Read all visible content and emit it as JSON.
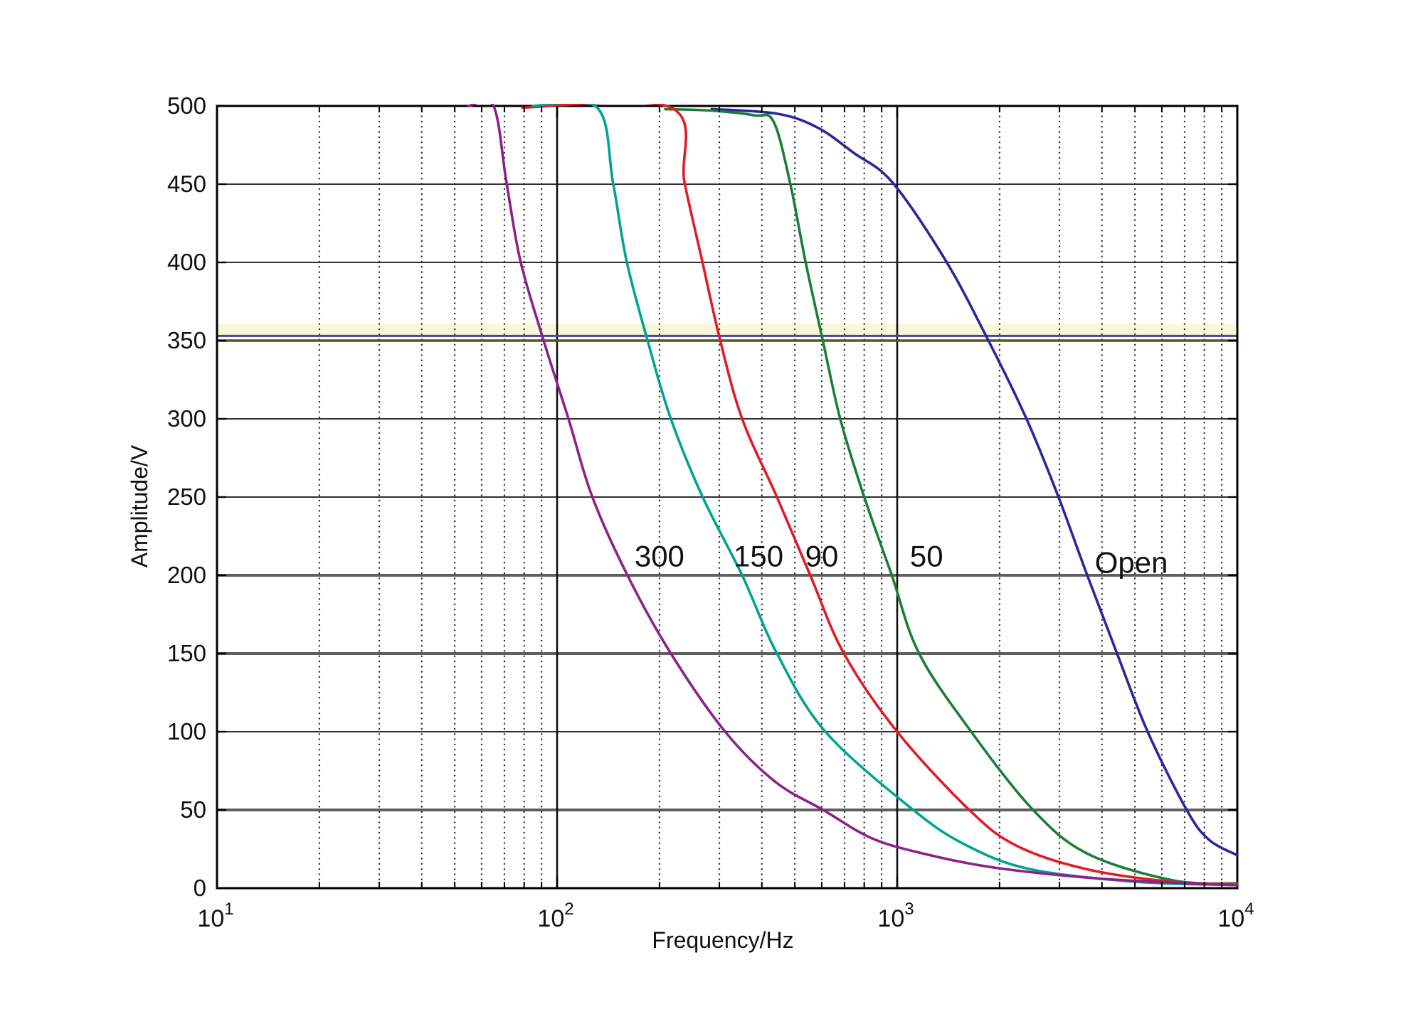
{
  "page": {
    "background": "#fefefe"
  },
  "chart_data": {
    "type": "line",
    "title": "",
    "xlabel": "Frequency/Hz",
    "ylabel": "Amplitude/V",
    "x_scale": "log",
    "xlim": [
      10,
      10000
    ],
    "ylim": [
      0,
      500
    ],
    "x_axis": {
      "tick_labels": [
        {
          "mantissa": "10",
          "exponent": "1",
          "value": 10
        },
        {
          "mantissa": "10",
          "exponent": "2",
          "value": 100
        },
        {
          "mantissa": "10",
          "exponent": "3",
          "value": 1000
        },
        {
          "mantissa": "10",
          "exponent": "4",
          "value": 10000
        }
      ],
      "major_gridlines": [
        100,
        1000
      ],
      "minor_gridlines": [
        20,
        30,
        40,
        50,
        60,
        70,
        80,
        90,
        200,
        300,
        400,
        500,
        600,
        700,
        800,
        900,
        2000,
        3000,
        4000,
        5000,
        6000,
        7000,
        8000,
        9000
      ]
    },
    "y_axis": {
      "tick_labels": [
        0,
        50,
        100,
        150,
        200,
        250,
        300,
        350,
        400,
        450,
        500
      ],
      "gridlines_thin": [
        100,
        250,
        300,
        400,
        450
      ],
      "gridlines_thick": [
        50,
        150,
        200
      ]
    },
    "grid": true,
    "legend_position": "inline-labels",
    "highlight_band": {
      "v_low": 353,
      "v_high": 360.5,
      "color": "#f8f8d9"
    },
    "ref_lines": [
      {
        "name": "blue-350-line",
        "v": 353,
        "color": "#4444aa",
        "width": 3
      },
      {
        "name": "olive-350-line",
        "v": 350,
        "color": "#4c5a20",
        "width": 3.5
      }
    ],
    "series": [
      {
        "name": "Open",
        "color": "#28289a",
        "label": {
          "text": "Open",
          "f": 4880,
          "v": 208
        },
        "points": [
          [
            285,
            498
          ],
          [
            445,
            495
          ],
          [
            585,
            486
          ],
          [
            745,
            470
          ],
          [
            969,
            451
          ],
          [
            1390,
            401
          ],
          [
            1845,
            351
          ],
          [
            2400,
            300
          ],
          [
            2980,
            250
          ],
          [
            3620,
            200
          ],
          [
            4430,
            150
          ],
          [
            5450,
            100
          ],
          [
            7100,
            50
          ],
          [
            8250,
            31
          ],
          [
            10000,
            21
          ]
        ]
      },
      {
        "name": "50",
        "color": "#1b7e35",
        "label": {
          "text": "50",
          "f": 1220,
          "v": 212
        },
        "points": [
          [
            208,
            498
          ],
          [
            285,
            497
          ],
          [
            380,
            494
          ],
          [
            433,
            490
          ],
          [
            484,
            451
          ],
          [
            537,
            401
          ],
          [
            603,
            351
          ],
          [
            680,
            300
          ],
          [
            800,
            250
          ],
          [
            964,
            200
          ],
          [
            1160,
            150
          ],
          [
            1650,
            100
          ],
          [
            2510,
            50
          ],
          [
            3630,
            22
          ],
          [
            6470,
            5
          ],
          [
            10000,
            3
          ]
        ]
      },
      {
        "name": "90",
        "color": "#e31b23",
        "label": {
          "text": "90",
          "f": 600,
          "v": 212
        },
        "points": [
          [
            79,
            499
          ],
          [
            216,
            499
          ],
          [
            237,
            451
          ],
          [
            267,
            401
          ],
          [
            301,
            351
          ],
          [
            350,
            300
          ],
          [
            443,
            250
          ],
          [
            555,
            200
          ],
          [
            697,
            150
          ],
          [
            1000,
            100
          ],
          [
            1630,
            50
          ],
          [
            2250,
            27
          ],
          [
            3630,
            12
          ],
          [
            6470,
            4
          ],
          [
            10000,
            2.5
          ]
        ]
      },
      {
        "name": "150",
        "color": "#00a396",
        "label": {
          "text": "150",
          "f": 391,
          "v": 212
        },
        "points": [
          [
            85,
            500
          ],
          [
            131,
            499
          ],
          [
            146,
            451
          ],
          [
            160,
            401
          ],
          [
            184,
            351
          ],
          [
            216,
            300
          ],
          [
            268,
            250
          ],
          [
            350,
            200
          ],
          [
            443,
            150
          ],
          [
            615,
            100
          ],
          [
            1115,
            50
          ],
          [
            1610,
            27
          ],
          [
            2480,
            12
          ],
          [
            5100,
            4
          ],
          [
            10000,
            2
          ]
        ]
      },
      {
        "name": "300",
        "color": "#8c2188",
        "label": {
          "text": "300",
          "f": 200,
          "v": 212
        },
        "points": [
          [
            55,
            500
          ],
          [
            65,
            500
          ],
          [
            71,
            451
          ],
          [
            78,
            401
          ],
          [
            91,
            351
          ],
          [
            108,
            300
          ],
          [
            127,
            250
          ],
          [
            161,
            200
          ],
          [
            216,
            150
          ],
          [
            312,
            100
          ],
          [
            438,
            68
          ],
          [
            606,
            50
          ],
          [
            840,
            32
          ],
          [
            1200,
            22
          ],
          [
            1950,
            13
          ],
          [
            4000,
            6
          ],
          [
            8200,
            2.5
          ],
          [
            10000,
            2
          ]
        ]
      }
    ]
  }
}
